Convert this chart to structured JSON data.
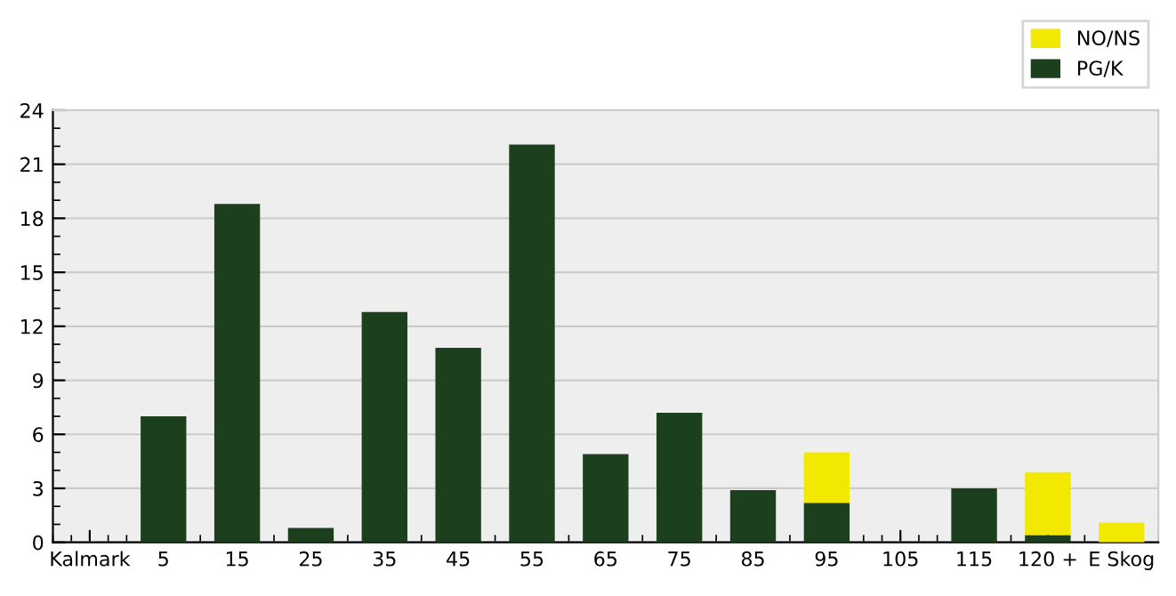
{
  "chart_data": {
    "type": "bar",
    "stacked": true,
    "categories": [
      "Kalmark",
      "5",
      "15",
      "25",
      "35",
      "45",
      "55",
      "65",
      "75",
      "85",
      "95",
      "105",
      "115",
      "120 +",
      "E Skog"
    ],
    "series": [
      {
        "name": "PG/K",
        "color": "#1c3f1e",
        "values": [
          0,
          7.0,
          18.8,
          0.8,
          12.8,
          10.8,
          22.1,
          4.9,
          7.2,
          2.9,
          2.2,
          0,
          3.0,
          0.4,
          0
        ]
      },
      {
        "name": "NO/NS",
        "color": "#f2e800",
        "values": [
          0,
          0,
          0,
          0,
          0,
          0,
          0,
          0,
          0,
          0,
          2.8,
          0,
          0,
          3.5,
          1.1
        ]
      }
    ],
    "ylim": [
      0,
      24
    ],
    "yticks": [
      0,
      3,
      6,
      9,
      12,
      15,
      18,
      21,
      24
    ],
    "grid": "y",
    "legend": "top right"
  }
}
